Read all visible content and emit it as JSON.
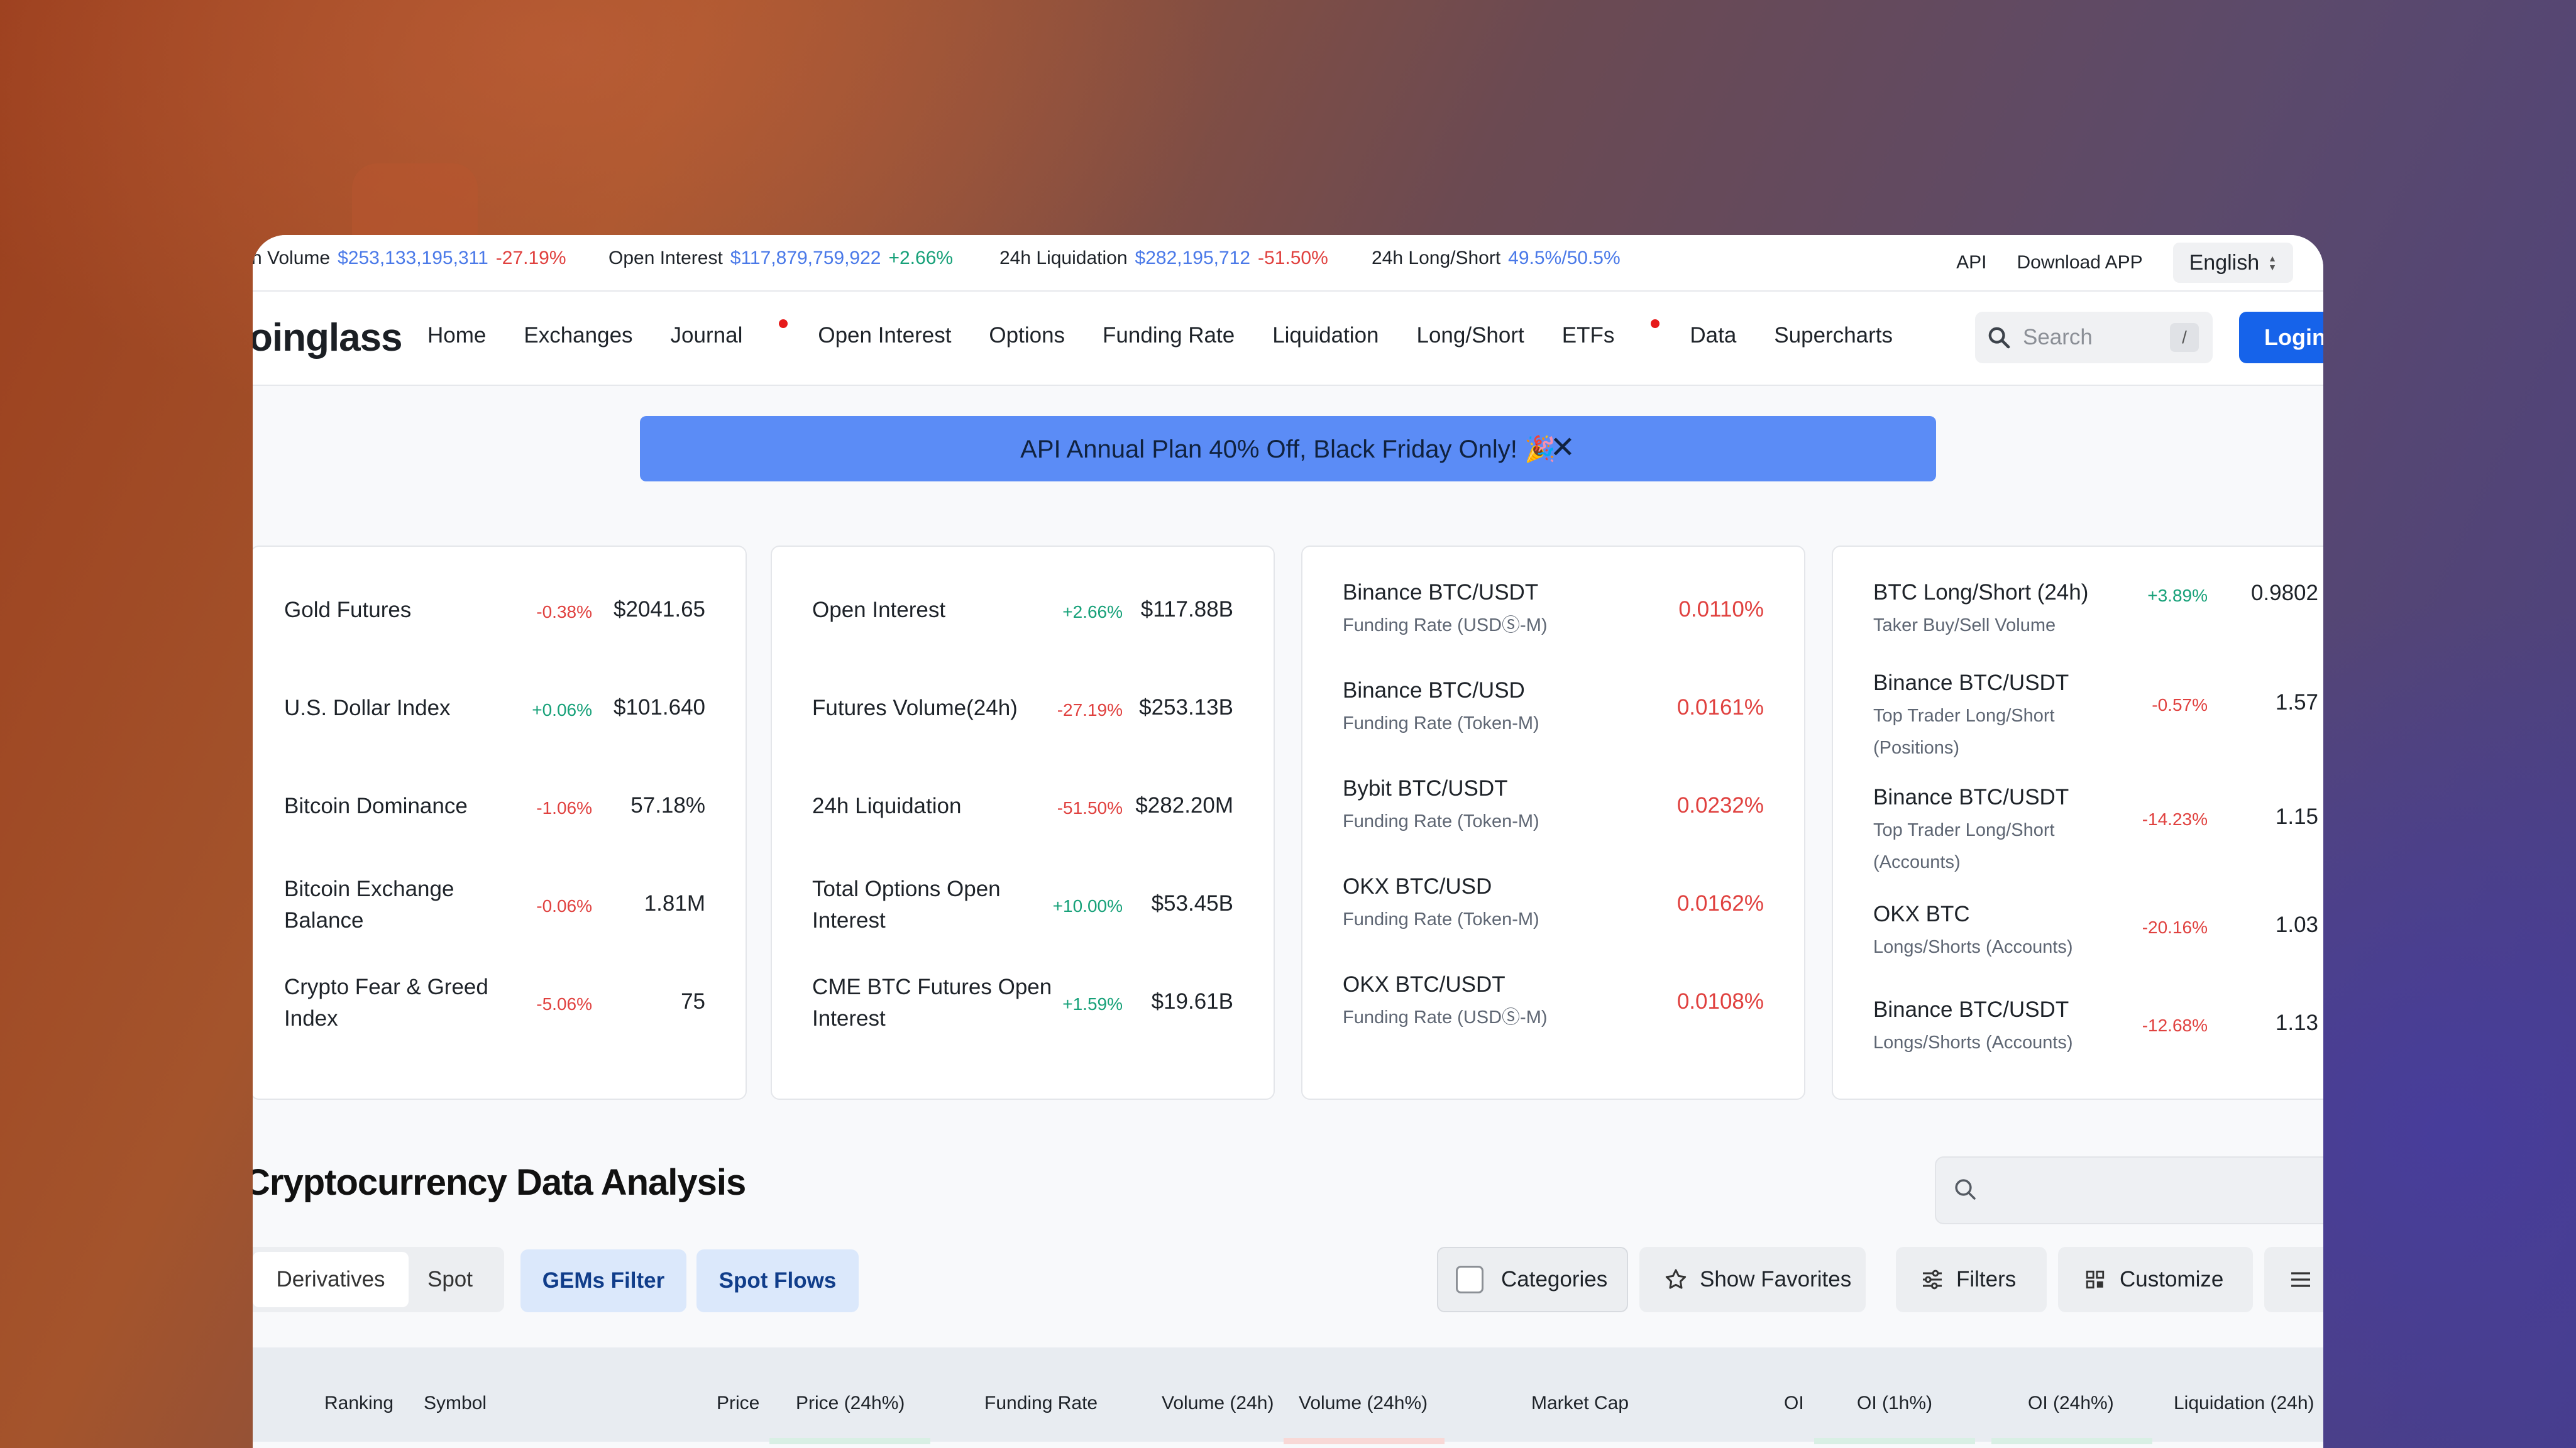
{
  "ticker": {
    "items": [
      {
        "label": "h Volume",
        "value": "$253,133,195,311",
        "change": "-27.19%",
        "dir": "down"
      },
      {
        "label": "Open Interest",
        "value": "$117,879,759,922",
        "change": "+2.66%",
        "dir": "up"
      },
      {
        "label": "24h Liquidation",
        "value": "$282,195,712",
        "change": "-51.50%",
        "dir": "down"
      },
      {
        "label": "24h Long/Short",
        "value": "49.5%/50.5%",
        "change": "",
        "dir": ""
      }
    ],
    "api": "API",
    "download": "Download APP",
    "language": "English"
  },
  "nav": {
    "logo": "oinglass",
    "items": [
      "Home",
      "Exchanges",
      "Journal",
      "Open Interest",
      "Options",
      "Funding Rate",
      "Liquidation",
      "Long/Short",
      "ETFs",
      "Data",
      "Supercharts"
    ],
    "search_placeholder": "Search",
    "search_shortcut": "/",
    "login": "Login"
  },
  "banner": {
    "text": "API Annual Plan 40% Off, Black Friday Only! 🎉"
  },
  "cards": {
    "macro": [
      {
        "label": "Gold Futures",
        "change": "-0.38%",
        "value": "$2041.65"
      },
      {
        "label": "U.S. Dollar Index",
        "change": "+0.06%",
        "value": "$101.640"
      },
      {
        "label": "Bitcoin Dominance",
        "change": "-1.06%",
        "value": "57.18%"
      },
      {
        "label": "Bitcoin Exchange Balance",
        "change": "-0.06%",
        "value": "1.81M"
      },
      {
        "label": "Crypto Fear & Greed Index",
        "change": "-5.06%",
        "value": "75"
      }
    ],
    "market": [
      {
        "label": "Open Interest",
        "change": "+2.66%",
        "value": "$117.88B"
      },
      {
        "label": "Futures Volume(24h)",
        "change": "-27.19%",
        "value": "$253.13B"
      },
      {
        "label": "24h Liquidation",
        "change": "-51.50%",
        "value": "$282.20M"
      },
      {
        "label": "Total Options Open Interest",
        "change": "+10.00%",
        "value": "$53.45B"
      },
      {
        "label": "CME BTC Futures Open Interest",
        "change": "+1.59%",
        "value": "$19.61B"
      }
    ],
    "funding": [
      {
        "label": "Binance BTC/USDT",
        "sub": "Funding Rate (USDⓈ-M)",
        "value": "0.0110%"
      },
      {
        "label": "Binance BTC/USD",
        "sub": "Funding Rate (Token-M)",
        "value": "0.0161%"
      },
      {
        "label": "Bybit BTC/USDT",
        "sub": "Funding Rate (Token-M)",
        "value": "0.0232%"
      },
      {
        "label": "OKX BTC/USD",
        "sub": "Funding Rate (Token-M)",
        "value": "0.0162%"
      },
      {
        "label": "OKX BTC/USDT",
        "sub": "Funding Rate (USDⓈ-M)",
        "value": "0.0108%"
      }
    ],
    "longshort": [
      {
        "label": "BTC Long/Short (24h)",
        "sub": "Taker Buy/Sell Volume",
        "change": "+3.89%",
        "value": "0.9802"
      },
      {
        "label": "Binance BTC/USDT",
        "sub": "Top Trader Long/Short (Positions)",
        "change": "-0.57%",
        "value": "1.57"
      },
      {
        "label": "Binance BTC/USDT",
        "sub": "Top Trader Long/Short (Accounts)",
        "change": "-14.23%",
        "value": "1.15"
      },
      {
        "label": "OKX BTC",
        "sub": "Longs/Shorts (Accounts)",
        "change": "-20.16%",
        "value": "1.03"
      },
      {
        "label": "Binance BTC/USDT",
        "sub": "Longs/Shorts (Accounts)",
        "change": "-12.68%",
        "value": "1.13"
      }
    ]
  },
  "section": {
    "title": "Cryptocurrency Data Analysis",
    "tabs": [
      "Derivatives",
      "Spot"
    ],
    "gems": "GEMs Filter",
    "spot_flows": "Spot Flows",
    "categories": "Categories",
    "favorites": "Show Favorites",
    "filters": "Filters",
    "customize": "Customize"
  },
  "table": {
    "headers": [
      "Ranking",
      "Symbol",
      "Price",
      "Price (24h%)",
      "Funding Rate",
      "Volume (24h)",
      "Volume (24h%)",
      "Market Cap",
      "OI",
      "OI (1h%)",
      "OI (24h%)",
      "Liquidation (24h)"
    ]
  },
  "colors": {
    "up": "#17a179",
    "down": "#e0413f",
    "link": "#4a79e8",
    "primary": "#1663ea",
    "banner": "#5b8cf6"
  }
}
